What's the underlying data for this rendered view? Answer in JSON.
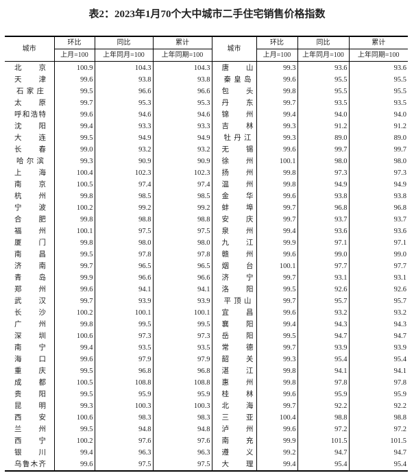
{
  "title": "表2：2023年1月70个大中城市二手住宅销售价格指数",
  "headers": {
    "city": "城市",
    "mom": "环比",
    "yoy": "同比",
    "cum": "累计",
    "mom_base": "上月=100",
    "yoy_base": "上年同月=100",
    "cum_base": "上年同期=100"
  },
  "rows": [
    [
      [
        "北京",
        "100.9",
        "104.3",
        "104.3"
      ],
      [
        "唐山",
        "99.3",
        "93.6",
        "93.6"
      ]
    ],
    [
      [
        "天津",
        "99.6",
        "93.8",
        "93.8"
      ],
      [
        "秦皇岛",
        "99.6",
        "95.5",
        "95.5"
      ]
    ],
    [
      [
        "石家庄",
        "99.5",
        "96.6",
        "96.6"
      ],
      [
        "包头",
        "99.8",
        "95.5",
        "95.5"
      ]
    ],
    [
      [
        "太原",
        "99.7",
        "95.3",
        "95.3"
      ],
      [
        "丹东",
        "99.7",
        "93.5",
        "93.5"
      ]
    ],
    [
      [
        "呼和浩特",
        "99.6",
        "94.6",
        "94.6"
      ],
      [
        "锦州",
        "99.4",
        "94.0",
        "94.0"
      ]
    ],
    [
      [
        "沈阳",
        "99.4",
        "93.3",
        "93.3"
      ],
      [
        "吉林",
        "99.3",
        "91.2",
        "91.2"
      ]
    ],
    [
      [
        "大连",
        "99.5",
        "94.9",
        "94.9"
      ],
      [
        "牡丹江",
        "99.3",
        "89.0",
        "89.0"
      ]
    ],
    [
      [
        "长春",
        "99.0",
        "93.2",
        "93.2"
      ],
      [
        "无锡",
        "99.6",
        "99.7",
        "99.7"
      ]
    ],
    [
      [
        "哈尔滨",
        "99.3",
        "90.9",
        "90.9"
      ],
      [
        "徐州",
        "100.1",
        "98.0",
        "98.0"
      ]
    ],
    [
      [
        "上海",
        "100.4",
        "102.3",
        "102.3"
      ],
      [
        "扬州",
        "99.8",
        "97.3",
        "97.3"
      ]
    ],
    [
      [
        "南京",
        "100.5",
        "97.4",
        "97.4"
      ],
      [
        "温州",
        "99.8",
        "94.9",
        "94.9"
      ]
    ],
    [
      [
        "杭州",
        "99.8",
        "98.5",
        "98.5"
      ],
      [
        "金华",
        "99.6",
        "93.8",
        "93.8"
      ]
    ],
    [
      [
        "宁波",
        "100.2",
        "99.2",
        "99.2"
      ],
      [
        "蚌埠",
        "99.7",
        "96.8",
        "96.8"
      ]
    ],
    [
      [
        "合肥",
        "99.8",
        "98.8",
        "98.8"
      ],
      [
        "安庆",
        "99.7",
        "93.7",
        "93.7"
      ]
    ],
    [
      [
        "福州",
        "100.1",
        "97.5",
        "97.5"
      ],
      [
        "泉州",
        "99.4",
        "93.6",
        "93.6"
      ]
    ],
    [
      [
        "厦门",
        "99.8",
        "98.0",
        "98.0"
      ],
      [
        "九江",
        "99.9",
        "97.1",
        "97.1"
      ]
    ],
    [
      [
        "南昌",
        "99.5",
        "97.8",
        "97.8"
      ],
      [
        "赣州",
        "99.6",
        "99.0",
        "99.0"
      ]
    ],
    [
      [
        "济南",
        "99.7",
        "96.5",
        "96.5"
      ],
      [
        "烟台",
        "100.1",
        "97.7",
        "97.7"
      ]
    ],
    [
      [
        "青岛",
        "99.9",
        "96.6",
        "96.6"
      ],
      [
        "济宁",
        "99.7",
        "93.1",
        "93.1"
      ]
    ],
    [
      [
        "郑州",
        "99.6",
        "94.1",
        "94.1"
      ],
      [
        "洛阳",
        "99.5",
        "92.6",
        "92.6"
      ]
    ],
    [
      [
        "武汉",
        "99.7",
        "93.9",
        "93.9"
      ],
      [
        "平顶山",
        "99.7",
        "95.7",
        "95.7"
      ]
    ],
    [
      [
        "长沙",
        "100.2",
        "100.1",
        "100.1"
      ],
      [
        "宜昌",
        "99.6",
        "93.2",
        "93.2"
      ]
    ],
    [
      [
        "广州",
        "99.8",
        "99.5",
        "99.5"
      ],
      [
        "襄阳",
        "99.4",
        "94.3",
        "94.3"
      ]
    ],
    [
      [
        "深圳",
        "100.6",
        "97.3",
        "97.3"
      ],
      [
        "岳阳",
        "99.5",
        "94.7",
        "94.7"
      ]
    ],
    [
      [
        "南宁",
        "99.4",
        "93.5",
        "93.5"
      ],
      [
        "常德",
        "99.7",
        "93.9",
        "93.9"
      ]
    ],
    [
      [
        "海口",
        "99.6",
        "97.9",
        "97.9"
      ],
      [
        "韶关",
        "99.3",
        "95.4",
        "95.4"
      ]
    ],
    [
      [
        "重庆",
        "99.5",
        "96.8",
        "96.8"
      ],
      [
        "湛江",
        "99.8",
        "94.1",
        "94.1"
      ]
    ],
    [
      [
        "成都",
        "100.5",
        "108.8",
        "108.8"
      ],
      [
        "惠州",
        "99.8",
        "97.8",
        "97.8"
      ]
    ],
    [
      [
        "贵阳",
        "99.5",
        "95.9",
        "95.9"
      ],
      [
        "桂林",
        "99.6",
        "95.9",
        "95.9"
      ]
    ],
    [
      [
        "昆明",
        "99.3",
        "100.3",
        "100.3"
      ],
      [
        "北海",
        "99.7",
        "92.2",
        "92.2"
      ]
    ],
    [
      [
        "西安",
        "100.6",
        "98.3",
        "98.3"
      ],
      [
        "三亚",
        "100.4",
        "98.8",
        "98.8"
      ]
    ],
    [
      [
        "兰州",
        "99.5",
        "94.8",
        "94.8"
      ],
      [
        "泸州",
        "99.6",
        "97.2",
        "97.2"
      ]
    ],
    [
      [
        "西宁",
        "100.2",
        "97.6",
        "97.6"
      ],
      [
        "南充",
        "99.9",
        "101.5",
        "101.5"
      ]
    ],
    [
      [
        "银川",
        "99.4",
        "96.3",
        "96.3"
      ],
      [
        "遵义",
        "99.2",
        "94.7",
        "94.7"
      ]
    ],
    [
      [
        "乌鲁木齐",
        "99.6",
        "97.5",
        "97.5"
      ],
      [
        "大理",
        "99.4",
        "95.4",
        "95.4"
      ]
    ]
  ]
}
